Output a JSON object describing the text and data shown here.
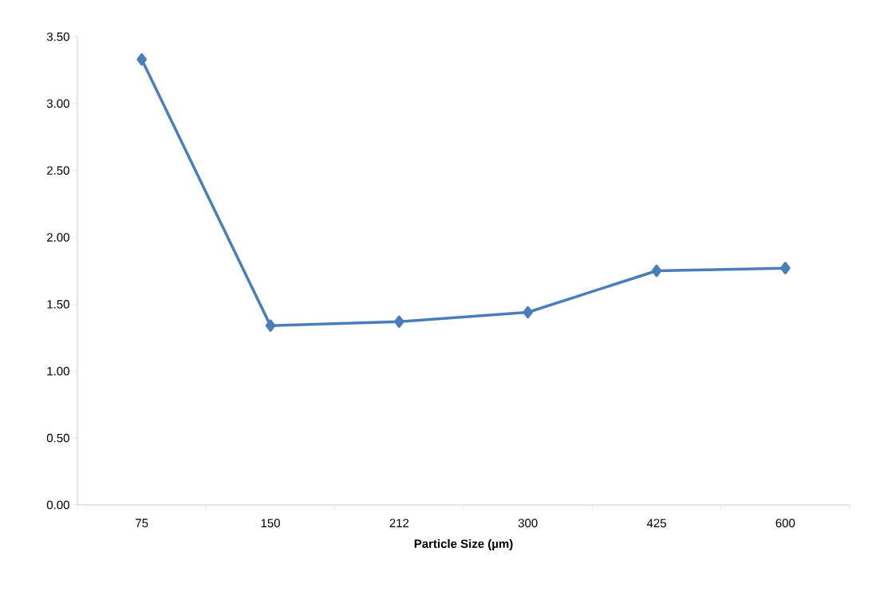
{
  "chart_data": {
    "type": "line",
    "xlabel": "Particle Size (µm)",
    "categories": [
      "75",
      "150",
      "212",
      "300",
      "425",
      "600"
    ],
    "values": [
      3.33,
      1.34,
      1.37,
      1.44,
      1.75,
      1.77
    ],
    "color": "#4a7ebb",
    "marker": "diamond",
    "line_style": "solid",
    "grid": false,
    "ylim": [
      0,
      3.5
    ],
    "yticks": [
      {
        "value": 0,
        "label": "0.00"
      },
      {
        "value": 0.5,
        "label": "0.50"
      },
      {
        "value": 1,
        "label": "1.00"
      },
      {
        "value": 1.5,
        "label": "1.50"
      },
      {
        "value": 2,
        "label": "2.00"
      },
      {
        "value": 2.5,
        "label": "2.50"
      },
      {
        "value": 3,
        "label": "3.00"
      },
      {
        "value": 3.5,
        "label": "3.50"
      }
    ]
  }
}
